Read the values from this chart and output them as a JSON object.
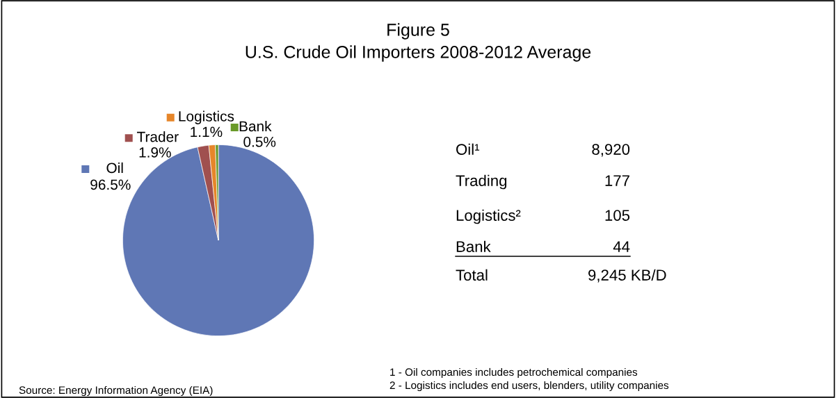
{
  "chart_data": [
    {
      "type": "pie",
      "title": "Figure 5",
      "subtitle": "U.S. Crude Oil Importers 2008-2012 Average",
      "categories": [
        "Oil",
        "Trader",
        "Logistics",
        "Bank"
      ],
      "values": [
        96.5,
        1.9,
        1.1,
        0.5
      ],
      "colors": [
        "#5f77b5",
        "#a0504f",
        "#e6862a",
        "#6a9a2a"
      ],
      "value_labels": [
        "96.5%",
        "1.9%",
        "1.1%",
        "0.5%"
      ],
      "legend": "top left",
      "annotations": [
        "Source: Energy Information Agency (EIA)",
        "1 - Oil companies includes petrochemical companies",
        "2 - Logistics includes end users, blenders, utility companies"
      ]
    },
    {
      "type": "other",
      "annotations": [
        "Oil¹",
        "8,920",
        "Trading",
        "177",
        "Logistics²",
        "105",
        "Bank",
        "44",
        "Total",
        "9,245 KB/D"
      ]
    }
  ]
}
